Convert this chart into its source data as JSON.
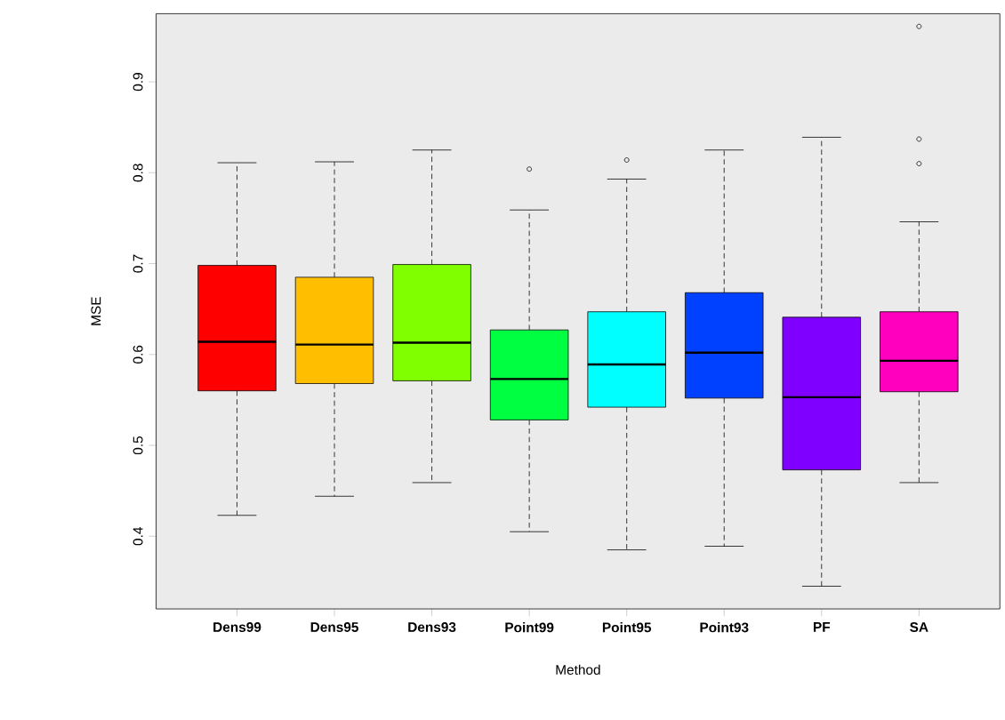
{
  "chart_data": {
    "type": "box",
    "xlabel": "Method",
    "ylabel": "MSE",
    "categories": [
      "Dens99",
      "Dens95",
      "Dens93",
      "Point99",
      "Point95",
      "Point93",
      "PF",
      "SA"
    ],
    "colors": [
      "#ff0000",
      "#ffbf00",
      "#80ff00",
      "#00ff40",
      "#00ffff",
      "#0040ff",
      "#8000ff",
      "#ff00bf"
    ],
    "boxes": [
      {
        "low": 0.423,
        "q1": 0.56,
        "median": 0.614,
        "q3": 0.698,
        "high": 0.811
      },
      {
        "low": 0.444,
        "q1": 0.568,
        "median": 0.611,
        "q3": 0.685,
        "high": 0.812
      },
      {
        "low": 0.459,
        "q1": 0.571,
        "median": 0.613,
        "q3": 0.699,
        "high": 0.825
      },
      {
        "low": 0.405,
        "q1": 0.528,
        "median": 0.573,
        "q3": 0.627,
        "high": 0.759,
        "outliers": [
          0.804
        ]
      },
      {
        "low": 0.385,
        "q1": 0.542,
        "median": 0.589,
        "q3": 0.647,
        "high": 0.793,
        "outliers": [
          0.814
        ]
      },
      {
        "low": 0.389,
        "q1": 0.552,
        "median": 0.602,
        "q3": 0.668,
        "high": 0.825
      },
      {
        "low": 0.345,
        "q1": 0.473,
        "median": 0.553,
        "q3": 0.641,
        "high": 0.839
      },
      {
        "low": 0.459,
        "q1": 0.559,
        "median": 0.593,
        "q3": 0.647,
        "high": 0.746,
        "outliers": [
          0.961,
          0.837,
          0.81
        ]
      }
    ],
    "ylim": [
      0.32,
      0.975
    ],
    "yticks": [
      0.4,
      0.5,
      0.6,
      0.7,
      0.8,
      0.9
    ]
  }
}
